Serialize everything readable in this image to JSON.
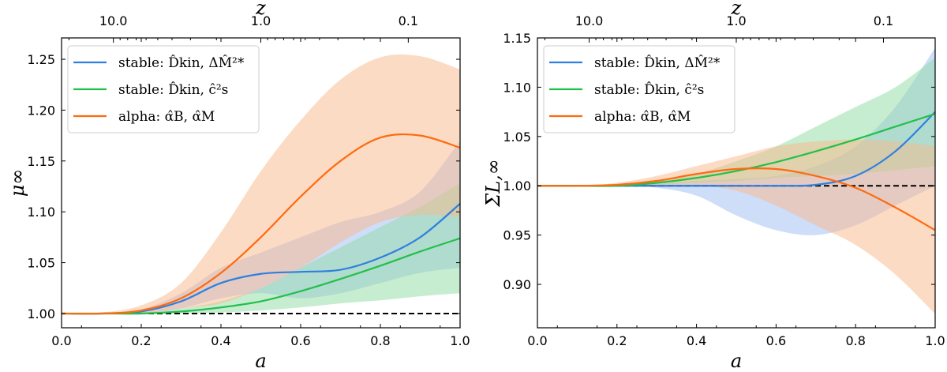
{
  "chart_data": [
    {
      "type": "line",
      "xlabel": "a",
      "ylabel": "μ∞",
      "top_xlabel": "z",
      "xlim": [
        0,
        1
      ],
      "ylim": [
        0.986,
        1.271
      ],
      "xticks": [
        "0.0",
        "0.2",
        "0.4",
        "0.6",
        "0.8",
        "1.0"
      ],
      "yticks": [
        "1.00",
        "1.05",
        "1.10",
        "1.15",
        "1.20",
        "1.25"
      ],
      "top_xticks": [
        "10.0",
        "1.0",
        "0.1"
      ],
      "legend": "top-left",
      "reference_line": 1.0,
      "x": [
        0,
        0.1,
        0.2,
        0.3,
        0.4,
        0.5,
        0.6,
        0.7,
        0.8,
        0.9,
        1.0
      ],
      "series": [
        {
          "name": "stable: D̂kin, ΔM̂²*",
          "color": "#2f7fe0",
          "band_color": "#9dbcf2",
          "values": [
            1,
            1.0,
            1.002,
            1.012,
            1.03,
            1.039,
            1.041,
            1.043,
            1.055,
            1.075,
            1.108
          ],
          "upper": [
            1,
            1.0,
            1.004,
            1.02,
            1.045,
            1.06,
            1.075,
            1.09,
            1.1,
            1.12,
            1.17
          ],
          "lower": [
            1,
            1.0,
            1.0,
            1.005,
            1.015,
            1.02,
            1.015,
            1.02,
            1.03,
            1.04,
            1.045
          ]
        },
        {
          "name": "stable: D̂kin, ĉ²s",
          "color": "#22c04a",
          "band_color": "#8fdca4",
          "values": [
            1,
            1.0,
            1.0,
            1.002,
            1.006,
            1.012,
            1.022,
            1.034,
            1.047,
            1.061,
            1.074
          ],
          "upper": [
            1,
            1.0,
            1.001,
            1.005,
            1.012,
            1.025,
            1.045,
            1.065,
            1.085,
            1.105,
            1.128
          ],
          "lower": [
            1,
            1.0,
            1.0,
            1.0,
            1.001,
            1.003,
            1.006,
            1.01,
            1.013,
            1.017,
            1.02
          ]
        },
        {
          "name": "alpha: α̂B, α̂M",
          "color": "#ff6a10",
          "band_color": "#f9b88a",
          "values": [
            1,
            1.0,
            1.003,
            1.015,
            1.04,
            1.075,
            1.115,
            1.15,
            1.173,
            1.175,
            1.163
          ],
          "upper": [
            1,
            1.001,
            1.008,
            1.03,
            1.08,
            1.14,
            1.19,
            1.23,
            1.252,
            1.253,
            1.24
          ],
          "lower": [
            1,
            1.0,
            1.0,
            1.005,
            1.01,
            1.025,
            1.045,
            1.07,
            1.09,
            1.097,
            1.095
          ]
        }
      ]
    },
    {
      "type": "line",
      "xlabel": "a",
      "ylabel": "ΣL,∞",
      "top_xlabel": "z",
      "xlim": [
        0,
        1
      ],
      "ylim": [
        0.856,
        1.15
      ],
      "xticks": [
        "0.0",
        "0.2",
        "0.4",
        "0.6",
        "0.8",
        "1.0"
      ],
      "yticks": [
        "0.90",
        "0.95",
        "1.00",
        "1.05",
        "1.10",
        "1.15"
      ],
      "top_xticks": [
        "10.0",
        "1.0",
        "0.1"
      ],
      "legend": "top-left",
      "reference_line": 1.0,
      "x": [
        0,
        0.1,
        0.2,
        0.3,
        0.4,
        0.5,
        0.6,
        0.7,
        0.8,
        0.9,
        1.0
      ],
      "series": [
        {
          "name": "stable: D̂kin, ΔM̂²*",
          "color": "#2f7fe0",
          "band_color": "#9dbcf2",
          "values": [
            1,
            1,
            1,
            1,
            1,
            1,
            1,
            1.001,
            1.01,
            1.035,
            1.075
          ],
          "upper": [
            1,
            1,
            1.0,
            1.002,
            1.005,
            1.007,
            1.01,
            1.02,
            1.04,
            1.08,
            1.14
          ],
          "lower": [
            1,
            1,
            1.0,
            0.998,
            0.99,
            0.97,
            0.955,
            0.95,
            0.96,
            0.98,
            1.0
          ]
        },
        {
          "name": "stable: D̂kin, ĉ²s",
          "color": "#22c04a",
          "band_color": "#8fdca4",
          "values": [
            1,
            1,
            1.0,
            1.003,
            1.008,
            1.015,
            1.024,
            1.035,
            1.047,
            1.06,
            1.073
          ],
          "upper": [
            1,
            1,
            1.001,
            1.005,
            1.012,
            1.025,
            1.04,
            1.06,
            1.08,
            1.1,
            1.13
          ],
          "lower": [
            1,
            1,
            1.0,
            1.001,
            1.003,
            1.005,
            1.008,
            1.01,
            1.012,
            1.016,
            1.02
          ]
        },
        {
          "name": "alpha: α̂B, α̂M",
          "color": "#ff6a10",
          "band_color": "#f9b88a",
          "values": [
            1,
            1,
            1.001,
            1.005,
            1.012,
            1.017,
            1.017,
            1.01,
            0.998,
            0.978,
            0.955
          ],
          "upper": [
            1,
            1,
            1.003,
            1.01,
            1.02,
            1.03,
            1.04,
            1.045,
            1.047,
            1.045,
            1.04
          ],
          "lower": [
            1,
            1,
            1.0,
            1.0,
            1.0,
            0.995,
            0.98,
            0.96,
            0.94,
            0.91,
            0.87
          ]
        }
      ]
    }
  ]
}
